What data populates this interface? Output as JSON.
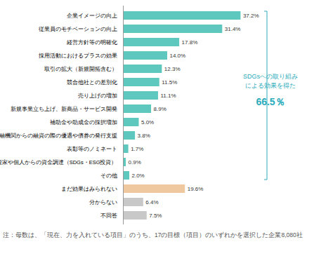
{
  "chart_data": {
    "type": "bar",
    "orientation": "horizontal",
    "categories": [
      "企業イメージの向上",
      "従業員のモチベーションの向上",
      "経営方針等の明確化",
      "採用活動におけるプラスの効果",
      "取引の拡大（新規開拓含む）",
      "競合他社との差別化",
      "売り上げの増加",
      "新規事業立ち上げ、新商品・サービス開発",
      "補助金や助成金の採択増加",
      "金融機関からの融資の際の優遇や債券の発行支援",
      "表彰等のノミネート",
      "投資家や個人からの資金調達（SDGs・ESG投資）",
      "その他",
      "まだ効果はみられない",
      "分からない",
      "不回答"
    ],
    "values": [
      37.2,
      31.4,
      17.8,
      14.0,
      12.3,
      11.5,
      11.1,
      8.9,
      5.0,
      3.8,
      1.7,
      0.9,
      2.0,
      19.6,
      6.4,
      7.5
    ],
    "value_labels": [
      "37.2%",
      "31.4%",
      "17.8%",
      "14.0%",
      "12.3%",
      "11.5%",
      "11.1%",
      "8.9%",
      "5.0%",
      "3.8%",
      "1.7%",
      "0.9%",
      "2.0%",
      "19.6%",
      "6.4%",
      "7.5%"
    ],
    "colors": [
      "#5ec8be",
      "#5ec8be",
      "#5ec8be",
      "#5ec8be",
      "#5ec8be",
      "#5ec8be",
      "#5ec8be",
      "#5ec8be",
      "#5ec8be",
      "#5ec8be",
      "#5ec8be",
      "#5ec8be",
      "#5ec8be",
      "#f0c8a0",
      "#c8c8c8",
      "#c8c8c8"
    ],
    "data_labels": true,
    "xlim": [
      0,
      42
    ],
    "tick_labels": "y",
    "grid": false,
    "annotations": [
      {
        "text": "SDGsへの取り組み",
        "color": "#2aabbb"
      },
      {
        "text": "による効果を得た",
        "color": "#2aabbb"
      },
      {
        "text": "66.5％",
        "color": "#2aabbb"
      }
    ],
    "caption": "注：母数は、「現在、力を入れている項目」のうち、17の目標（項目）のいずれかを選択した企業8,080社"
  }
}
